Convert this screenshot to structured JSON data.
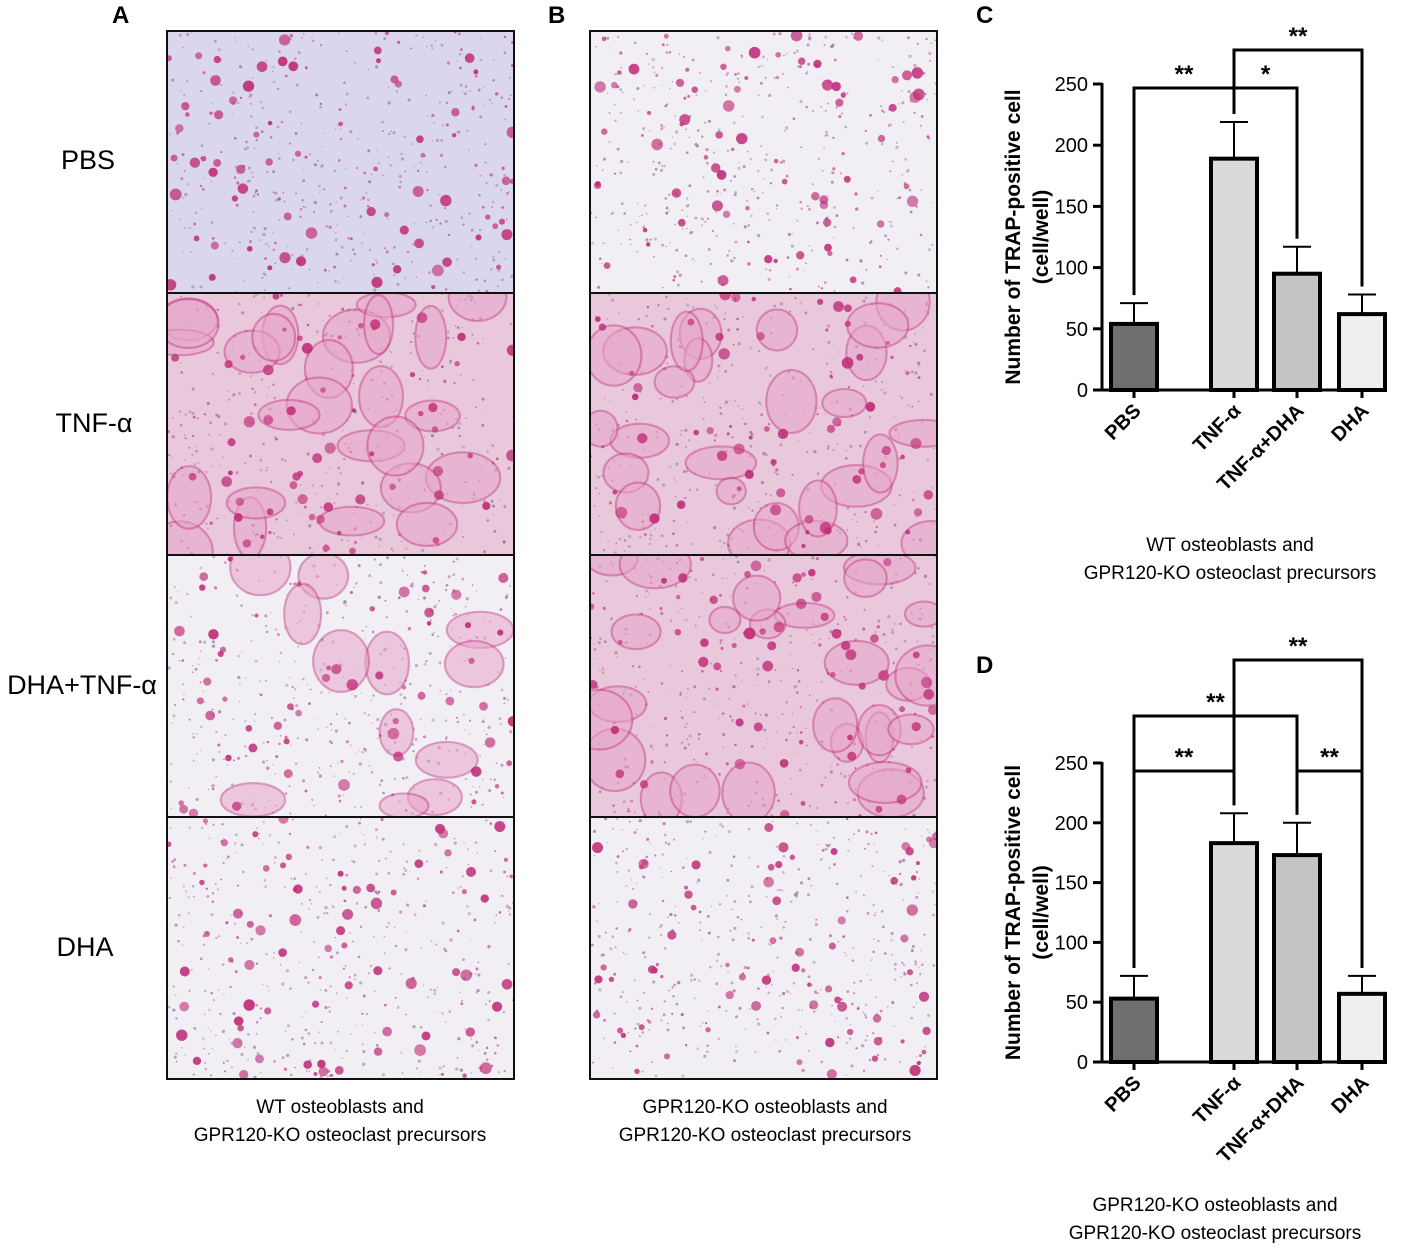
{
  "panels": {
    "A": {
      "letter": "A",
      "caption": [
        "WT osteoblasts and",
        "GPR120-KO osteoclast precursors"
      ]
    },
    "B": {
      "letter": "B",
      "caption": [
        "GPR120-KO osteoblasts and",
        "GPR120-KO osteoclast precursors"
      ]
    },
    "C": {
      "letter": "C",
      "caption": [
        "WT osteoblasts and",
        "GPR120-KO osteoclast precursors"
      ]
    },
    "D": {
      "letter": "D",
      "caption": [
        "GPR120-KO osteoblasts and",
        "GPR120-KO osteoclast precursors"
      ]
    }
  },
  "row_labels": [
    "PBS",
    "TNF-α",
    "DHA+TNF-α",
    "DHA"
  ],
  "colors": {
    "stain_magenta": "#c0307a",
    "bg_pbs_A": "#d9d6ee",
    "bg_light": "#f1eef4",
    "bg_tnf": "#e9c8dc",
    "bar_pbs": "#6e706e",
    "bar_tnf": "#d9dadb",
    "bar_tnf_dha": "#c4c4c4",
    "bar_dha": "#efefef"
  },
  "chart_data": [
    {
      "type": "bar",
      "categories": [
        "PBS",
        "TNF-α",
        "TNF-α+DHA",
        "DHA"
      ],
      "values": [
        54,
        189,
        95,
        62
      ],
      "errors": [
        17,
        30,
        22,
        16
      ],
      "ylabel": "Number of TRAP-positive cell (cell/well)",
      "ylabel_lines": [
        "Number of TRAP-positive cell",
        "(cell/well)"
      ],
      "ylim": [
        0,
        250
      ],
      "yticks": [
        "0",
        "50",
        "100",
        "150",
        "200",
        "250"
      ],
      "significance": [
        {
          "from": 0,
          "to": 1,
          "label": "**",
          "level": 1
        },
        {
          "from": 1,
          "to": 2,
          "label": "*",
          "level": 1
        },
        {
          "from": 1,
          "to": 3,
          "label": "**",
          "level": 2
        }
      ]
    },
    {
      "type": "bar",
      "categories": [
        "PBS",
        "TNF-α",
        "TNF-α+DHA",
        "DHA"
      ],
      "values": [
        53,
        183,
        173,
        57
      ],
      "errors": [
        19,
        25,
        27,
        15
      ],
      "ylabel": "Number of TRAP-positive cell (cell/well)",
      "ylabel_lines": [
        "Number of TRAP-positive cell",
        "(cell/well)"
      ],
      "ylim": [
        0,
        250
      ],
      "yticks": [
        "0",
        "50",
        "100",
        "150",
        "200",
        "250"
      ],
      "significance": [
        {
          "from": 0,
          "to": 1,
          "label": "**",
          "level": 1
        },
        {
          "from": 2,
          "to": 3,
          "label": "**",
          "level": 1
        },
        {
          "from": 0,
          "to": 2,
          "label": "**",
          "level": 2
        },
        {
          "from": 1,
          "to": 3,
          "label": "**",
          "level": 3
        }
      ]
    }
  ]
}
